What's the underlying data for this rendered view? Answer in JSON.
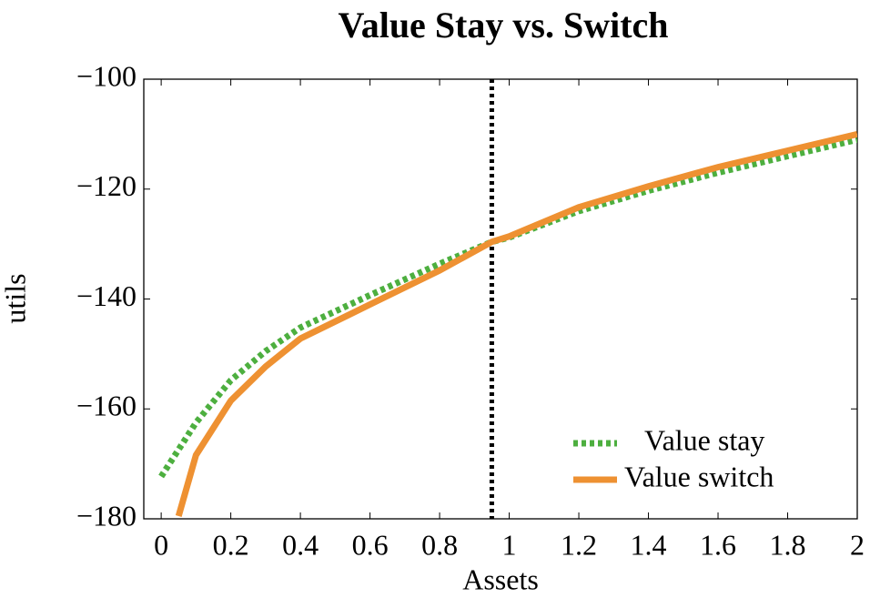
{
  "chart_data": {
    "type": "line",
    "title": "Value Stay vs. Switch",
    "x_label": "Assets",
    "y_label": "utils",
    "xlim": [
      -0.05,
      2
    ],
    "ylim": [
      -180,
      -100
    ],
    "xticks": [
      0,
      0.2,
      0.4,
      0.6,
      0.8,
      1,
      1.2,
      1.4,
      1.6,
      1.8,
      2
    ],
    "yticks": [
      {
        "value": -100,
        "label": "−100"
      },
      {
        "value": -120,
        "label": "−120"
      },
      {
        "value": -140,
        "label": "−140"
      },
      {
        "value": -160,
        "label": "−160"
      },
      {
        "value": -180,
        "label": "−180"
      }
    ],
    "vline": 0.95,
    "legend": "lower right",
    "series": [
      {
        "name": "Value stay",
        "color": "#4daf3f",
        "style": "dotted",
        "x": [
          0,
          0.1,
          0.2,
          0.3,
          0.4,
          0.6,
          0.8,
          0.95,
          1,
          1.2,
          1.4,
          1.6,
          1.8,
          2
        ],
        "values": [
          -172.3,
          -162.5,
          -154.8,
          -149.5,
          -145.2,
          -139.3,
          -133.6,
          -129.6,
          -128.8,
          -124,
          -120.3,
          -117,
          -114,
          -111
        ]
      },
      {
        "name": "Value switch",
        "color": "#ee9132",
        "style": "solid",
        "x": [
          0.05,
          0.1,
          0.2,
          0.3,
          0.4,
          0.6,
          0.8,
          0.95,
          1,
          1.2,
          1.4,
          1.6,
          1.8,
          2
        ],
        "values": [
          -179.5,
          -168.4,
          -158.5,
          -152.3,
          -147.2,
          -141,
          -134.8,
          -129.6,
          -128.6,
          -123.3,
          -119.5,
          -116,
          -113,
          -110
        ]
      }
    ]
  }
}
